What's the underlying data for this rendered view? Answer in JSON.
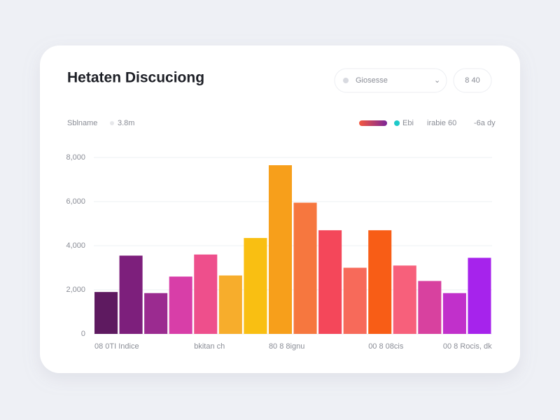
{
  "ui": {
    "search": "Giosesse",
    "button": "8 40",
    "legend": [
      "Ebi",
      "irabie 60",
      "-6a dy"
    ]
  },
  "chart_data": {
    "type": "bar",
    "title": "Hetaten Discuciong",
    "subtitle": "Sblname",
    "subtitle_value": "3.8m",
    "categories": [
      "08 0TI Indice",
      null,
      null,
      null,
      "bkitan ch",
      null,
      null,
      "80 8 8ignu",
      null,
      null,
      null,
      "00 8 08cis",
      null,
      null,
      "00 8 Rocis, dk",
      null
    ],
    "values": [
      1900,
      3550,
      1850,
      2600,
      3600,
      2650,
      4350,
      7650,
      5950,
      4700,
      3000,
      4700,
      3100,
      2400,
      1850,
      3450
    ],
    "colors": [
      "#5e1a60",
      "#7d1f7c",
      "#9b2b90",
      "#d83ea8",
      "#ee4f8c",
      "#f7ad2c",
      "#f9bf12",
      "#f79f1b",
      "#f6773f",
      "#f4475a",
      "#f76a5a",
      "#f85d16",
      "#f7607b",
      "#d8419f",
      "#c130cb",
      "#a623ec"
    ],
    "ylim": [
      0,
      8000
    ],
    "yticks": [
      0,
      {
        "value": 2000,
        "label": "2,000"
      },
      {
        "value": 4000,
        "label": "4,000"
      },
      {
        "value": 6000,
        "label": "6,000"
      },
      {
        "value": 8000,
        "label": "8,000"
      }
    ],
    "grid": true
  }
}
